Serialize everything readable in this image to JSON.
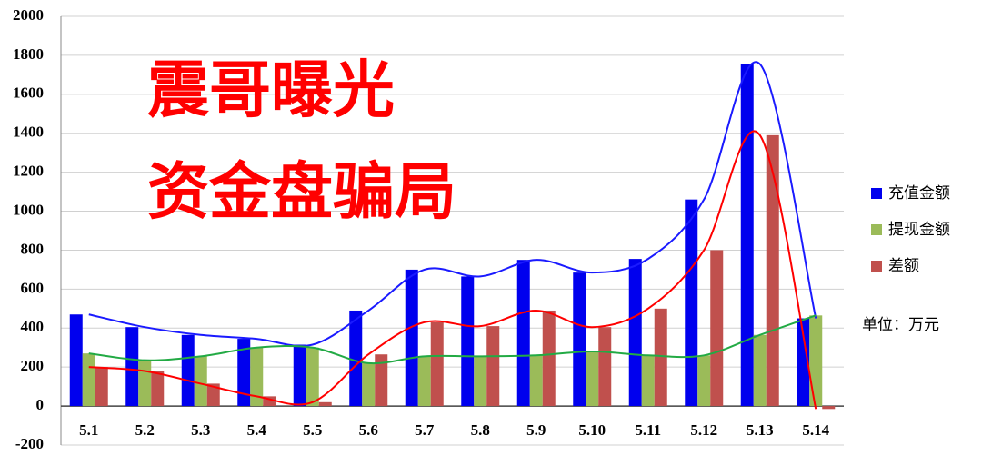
{
  "chart_data": {
    "type": "bar",
    "overlay_text": [
      "震哥曝光",
      "资金盘骗局"
    ],
    "unit_label": "单位：万元",
    "categories": [
      "5.1",
      "5.2",
      "5.3",
      "5.4",
      "5.5",
      "5.6",
      "5.7",
      "5.8",
      "5.9",
      "5.10",
      "5.11",
      "5.12",
      "5.13",
      "5.14"
    ],
    "series": [
      {
        "name": "充值金额",
        "color": "#0000ee",
        "trend_color": "#1a1aff",
        "values": [
          470,
          405,
          365,
          345,
          315,
          490,
          700,
          665,
          750,
          685,
          755,
          1060,
          1755,
          450
        ]
      },
      {
        "name": "提现金额",
        "color": "#9bbb59",
        "trend_color": "#22aa44",
        "values": [
          270,
          235,
          255,
          300,
          300,
          220,
          255,
          255,
          260,
          280,
          260,
          260,
          365,
          465
        ]
      },
      {
        "name": "差额",
        "color": "#c0504d",
        "trend_color": "#ff0000",
        "values": [
          200,
          180,
          115,
          50,
          20,
          265,
          430,
          410,
          490,
          405,
          500,
          800,
          1390,
          -15
        ]
      }
    ],
    "ylim": [
      -200,
      2000
    ],
    "yticks": [
      -200,
      0,
      200,
      400,
      600,
      800,
      1000,
      1200,
      1400,
      1600,
      1800,
      2000
    ],
    "grid": true,
    "trendlines": true,
    "legend": "right"
  }
}
